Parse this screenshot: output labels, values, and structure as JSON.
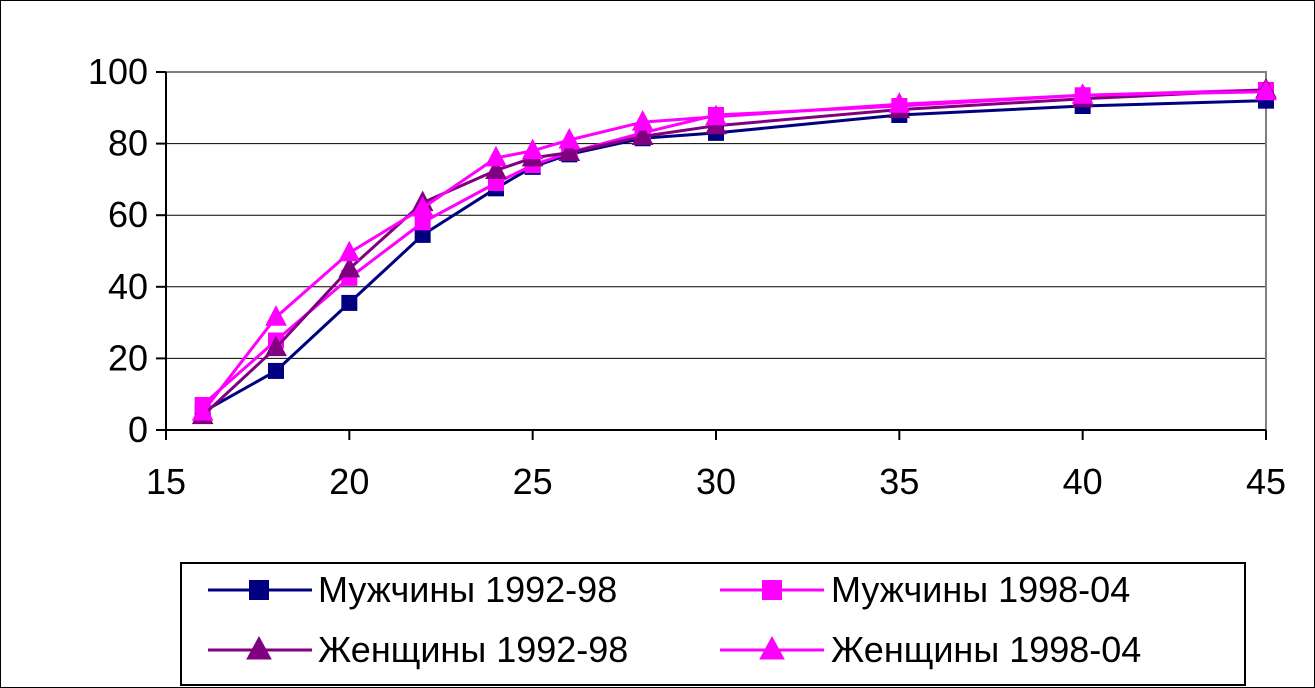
{
  "chart_data": {
    "type": "line",
    "title": "",
    "xlabel": "",
    "ylabel": "",
    "x": [
      16,
      18,
      20,
      22,
      24,
      25,
      26,
      28,
      30,
      35,
      40,
      45
    ],
    "xlim": [
      15,
      45
    ],
    "ylim": [
      0,
      100
    ],
    "xticks": [
      15,
      20,
      25,
      30,
      35,
      40,
      45
    ],
    "yticks": [
      0,
      20,
      40,
      60,
      80,
      100
    ],
    "grid": "horizontal",
    "legend_position": "bottom",
    "series": [
      {
        "name": "Мужчины 1992-98",
        "color": "#000080",
        "marker": "square",
        "values": [
          5,
          16.5,
          35.5,
          54.5,
          67.5,
          73.5,
          77,
          81.5,
          83,
          88,
          90.5,
          92
        ]
      },
      {
        "name": "Мужчины 1998-04",
        "color": "#FF00FF",
        "marker": "square",
        "values": [
          7,
          25,
          42.5,
          58,
          69,
          74,
          77.5,
          83,
          88,
          90.5,
          93.5,
          95
        ]
      },
      {
        "name": "Женщины 1992-98",
        "color": "#800080",
        "marker": "triangle",
        "values": [
          4,
          23,
          45,
          63.5,
          72.5,
          76,
          77.5,
          82,
          85,
          89.5,
          92.5,
          95
        ]
      },
      {
        "name": "Женщины 1998-04",
        "color": "#FF00FF",
        "marker": "triangle",
        "values": [
          5,
          31.5,
          49.5,
          62,
          76,
          78,
          81,
          86,
          87.5,
          91,
          93.5,
          94.5
        ]
      }
    ]
  }
}
